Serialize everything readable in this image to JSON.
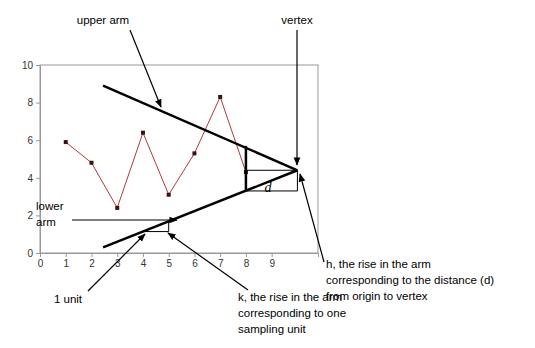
{
  "chart_data": {
    "type": "line",
    "xlim": [
      0,
      10.8
    ],
    "xticks": [
      0,
      1,
      2,
      3,
      4,
      5,
      6,
      7,
      8,
      9
    ],
    "ylim": [
      0,
      10
    ],
    "yticks": [
      0,
      2,
      4,
      6,
      8,
      10
    ],
    "series": [
      {
        "color": "#b03a3a",
        "marker": "square",
        "line_style": "solid",
        "x": [
          1,
          2,
          3,
          4,
          5,
          6,
          7,
          8
        ],
        "values": [
          5.9,
          4.8,
          2.4,
          6.4,
          3.1,
          5.3,
          8.3,
          4.3
        ]
      },
      {
        "color": "#000000",
        "line_style": "thick",
        "x": [
          2.45,
          10
        ],
        "values": [
          8.9,
          4.4
        ]
      },
      {
        "color": "#000000",
        "line_style": "thick",
        "x": [
          2.45,
          10
        ],
        "values": [
          0.3,
          4.4
        ]
      },
      {
        "color": "#000000",
        "line_style": "thick",
        "x": [
          8,
          8
        ],
        "values": [
          3.3,
          5.7
        ]
      },
      {
        "color": "#000000",
        "line_style": "thin",
        "x": [
          8,
          10
        ],
        "values": [
          4.4,
          4.4
        ]
      },
      {
        "color": "#000000",
        "line_style": "thin",
        "x": [
          8,
          10,
          10
        ],
        "values": [
          3.3,
          3.3,
          4.4
        ]
      },
      {
        "color": "#000000",
        "line_style": "thin",
        "x": [
          4,
          5,
          5
        ],
        "values": [
          1.14,
          1.14,
          1.68
        ]
      }
    ],
    "annotations": [
      {
        "text": "upper arm"
      },
      {
        "text": "vertex"
      },
      {
        "lines": [
          "lower",
          "arm"
        ]
      },
      {
        "text": "d"
      },
      {
        "lines": [
          "h, the rise in the arm",
          "corresponding to the distance (d)",
          "from origin to vertex"
        ]
      },
      {
        "text": "1 unit"
      },
      {
        "lines": [
          "k, the rise in the arm",
          "corresponding to one",
          "sampling unit"
        ]
      }
    ]
  }
}
